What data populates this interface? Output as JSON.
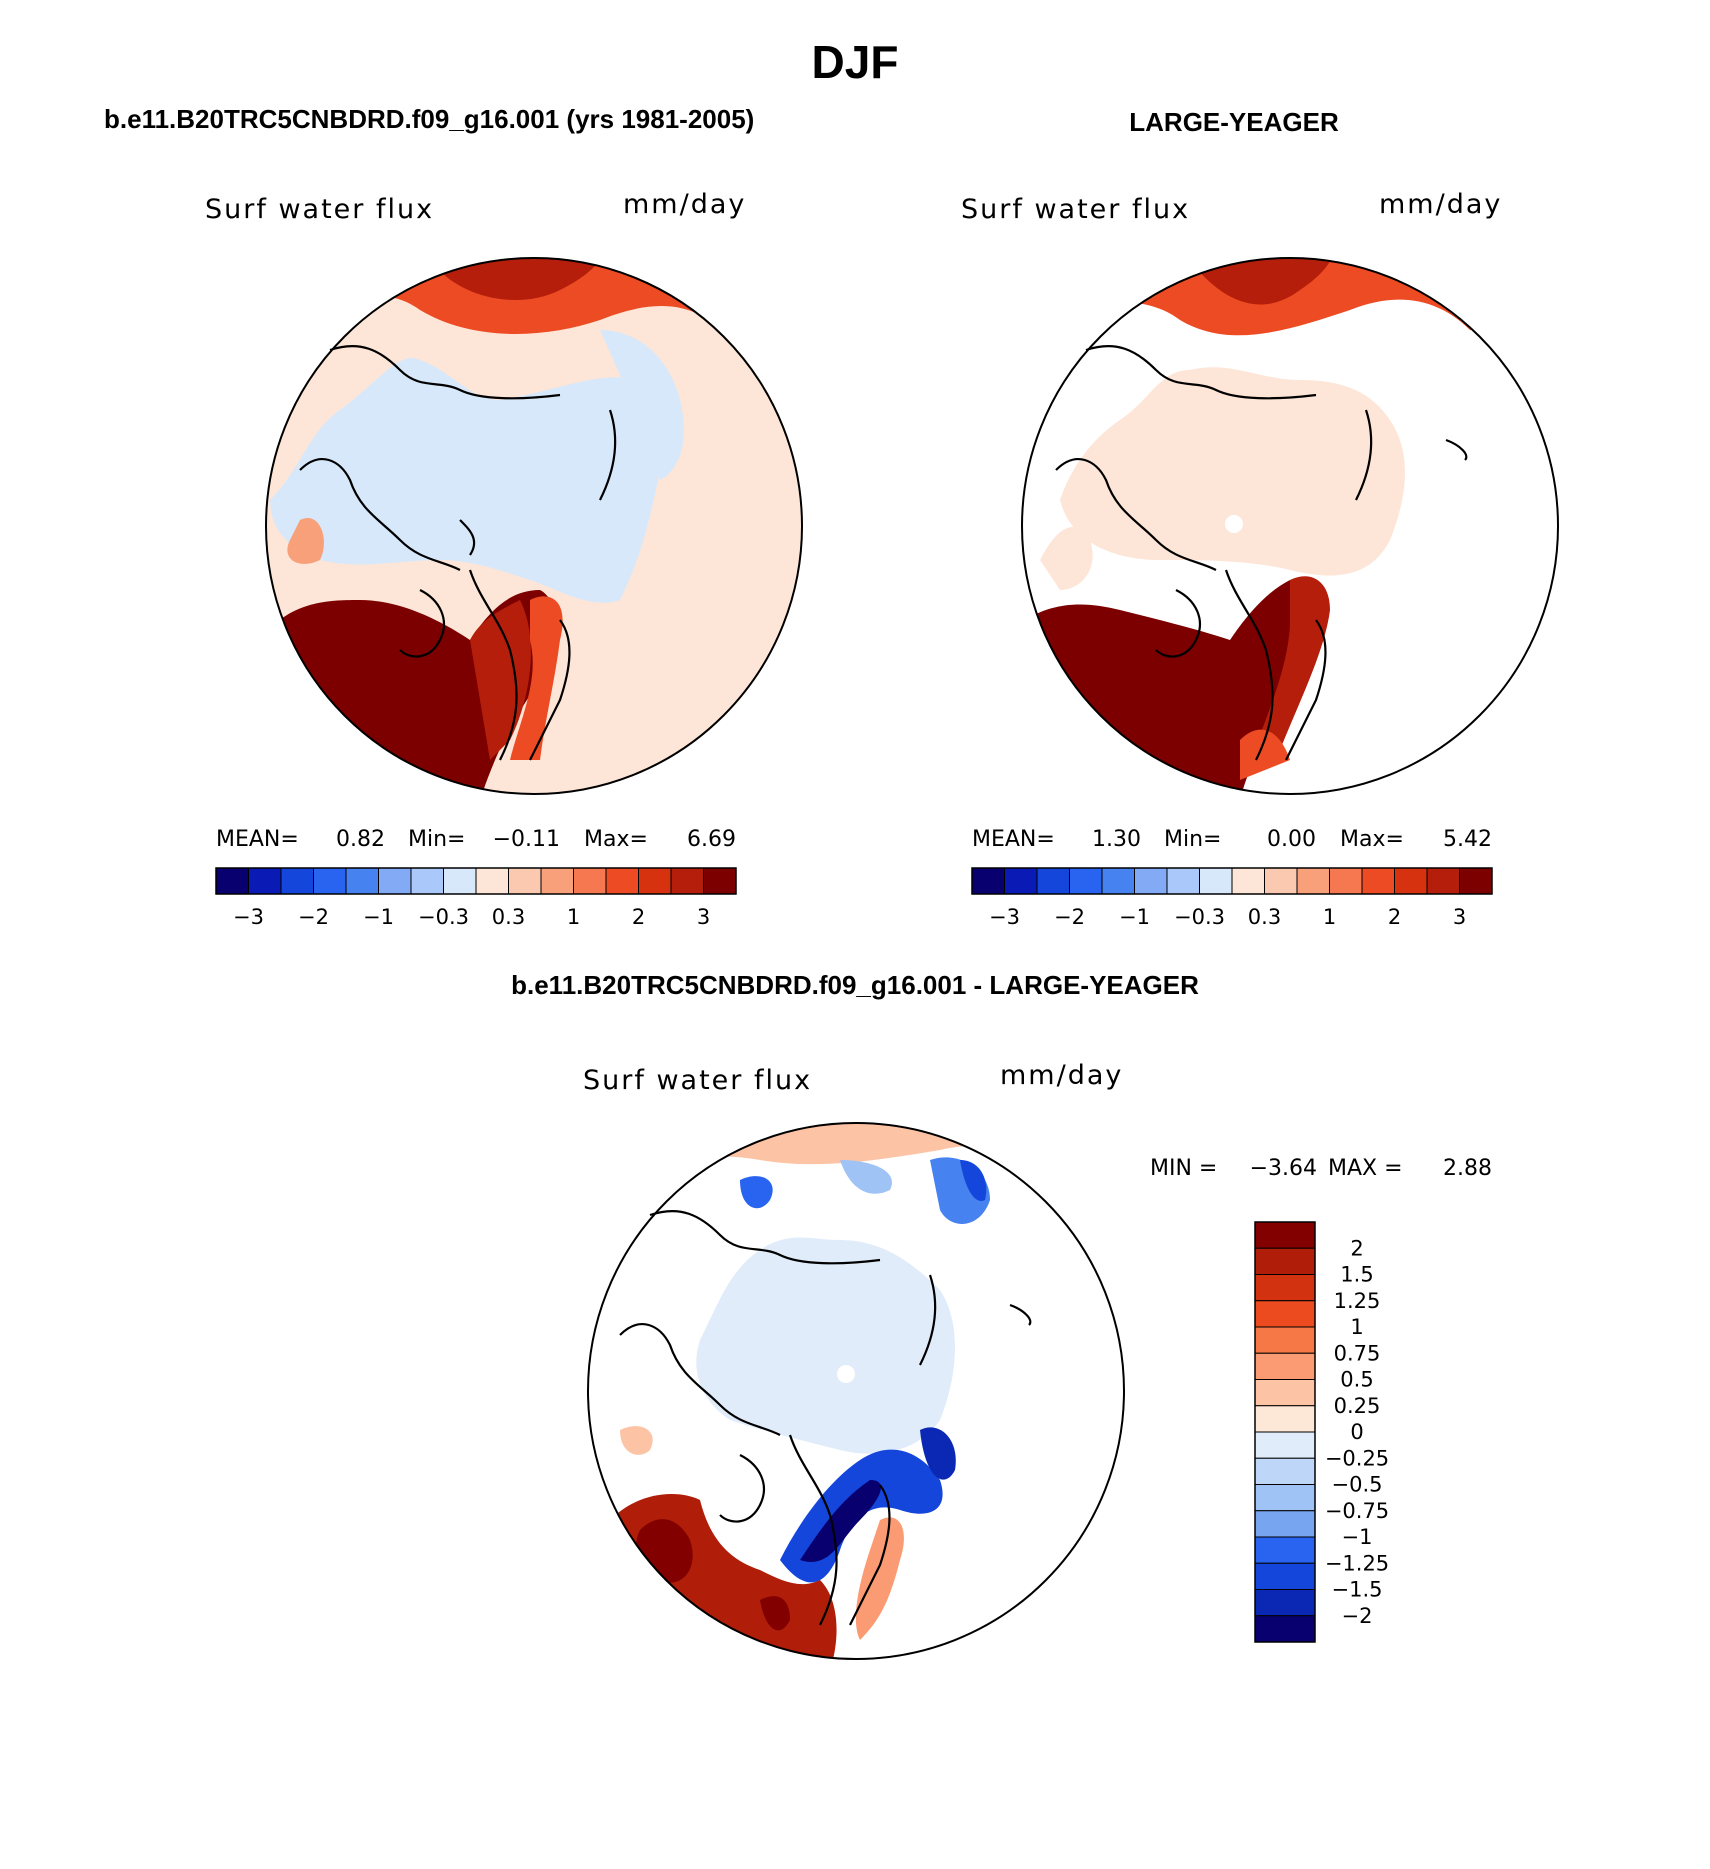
{
  "page": {
    "season": "DJF",
    "variable": "Surf water flux",
    "units": "mm/day"
  },
  "panels": [
    {
      "id": "case",
      "title": "b.e11.B20TRC5CNBDRD.f09_g16.001 (yrs 1981-2005)",
      "variable": "Surf water flux",
      "units": "mm/day",
      "mean_label": "MEAN=",
      "mean_value": "0.82",
      "min_label": "Min=",
      "min_value": "−0.11",
      "max_label": "Max=",
      "max_value": "6.69"
    },
    {
      "id": "obs",
      "title": "LARGE-YEAGER",
      "variable": "Surf water flux",
      "units": "mm/day",
      "mean_label": "MEAN=",
      "mean_value": "1.30",
      "min_label": "Min=",
      "min_value": "0.00",
      "max_label": "Max=",
      "max_value": "5.42"
    }
  ],
  "top_colorbar": {
    "colors": [
      "#08006e",
      "#0a1ab4",
      "#1446dc",
      "#2864f0",
      "#4682f0",
      "#82aaf5",
      "#aac8fa",
      "#d7e8fa",
      "#fde6d7",
      "#fbc8b0",
      "#f8a07a",
      "#f57850",
      "#ec4b23",
      "#d7320f",
      "#b41e0a",
      "#7d0000"
    ],
    "tick_labels": [
      "−3",
      "−2",
      "−1",
      "−0.3",
      "0.3",
      "1",
      "2",
      "3"
    ]
  },
  "difference": {
    "title": "b.e11.B20TRC5CNBDRD.f09_g16.001 - LARGE-YEAGER",
    "variable": "Surf water flux",
    "units": "mm/day",
    "min_label": "MIN =",
    "min_value": "−3.64",
    "max_label": "MAX =",
    "max_value": "2.88",
    "colorbar": {
      "colors_top_to_bottom": [
        "#820000",
        "#b01e0a",
        "#d2320f",
        "#eb4b1e",
        "#f57846",
        "#fa9b73",
        "#fcc3a5",
        "#fde8d8",
        "#e1ecfa",
        "#bed7f8",
        "#a0c3f5",
        "#78a5f0",
        "#2864f0",
        "#1446dc",
        "#0a28b4",
        "#08006e"
      ],
      "tick_labels": [
        "2",
        "1.5",
        "1.25",
        "1",
        "0.75",
        "0.5",
        "0.25",
        "0",
        "−0.25",
        "−0.5",
        "−0.75",
        "−1",
        "−1.25",
        "−1.5",
        "−2"
      ]
    }
  }
}
